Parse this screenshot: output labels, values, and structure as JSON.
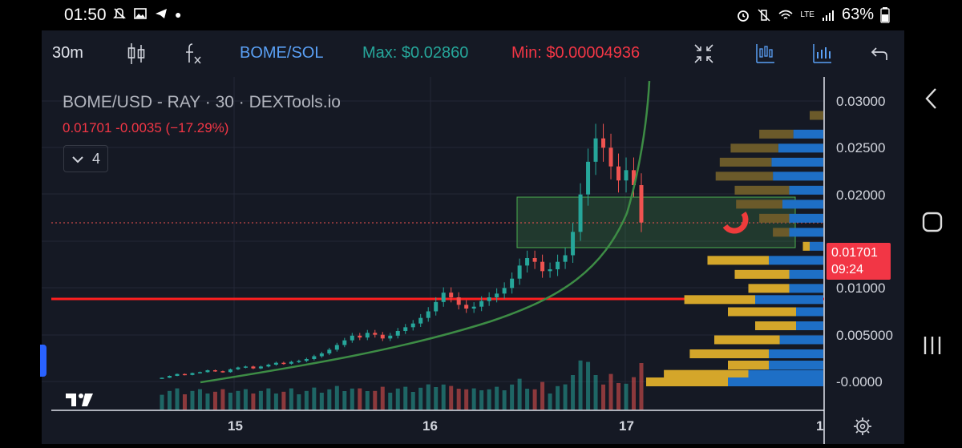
{
  "statusbar": {
    "time": "01:50",
    "battery": "63%",
    "network": "LTE"
  },
  "toolbar": {
    "interval": "30m",
    "symbol": "BOME/SOL",
    "max_label": "Max: $0.02860",
    "min_label": "Min: $0.00004936",
    "colors": {
      "max": "#26a69a",
      "min": "#f23645",
      "symbol": "#5aa0f5",
      "icons": "#5aa0f5"
    }
  },
  "chart_legend": {
    "title": "BOME/USD - RAY · 30 · DEXTools.io",
    "values": "0.01701  -0.0035 (−17.29%)",
    "indicators_count": "4"
  },
  "price_tag": {
    "price": "0.01701",
    "countdown": "09:24"
  },
  "chart_data": {
    "type": "candlestick",
    "title": "BOME/USD - RAY · 30 · DEXTools.io",
    "y_ticks": [
      "0.03000",
      "0.02500",
      "0.02000",
      "0.01000",
      "0.005000",
      "-0.0000"
    ],
    "x_ticks": [
      "15",
      "16",
      "17",
      "1"
    ],
    "last_price": 0.01701,
    "max": 0.0286,
    "colors": {
      "up": "#26a69a",
      "down": "#ef5350",
      "support_line": "#ff1f1f",
      "curve": "#3d8c45",
      "zone": "#4caf50"
    },
    "closes": [
      0.0004,
      0.0006,
      0.0008,
      0.0007,
      0.0009,
      0.001,
      0.0012,
      0.0011,
      0.001,
      0.0013,
      0.0015,
      0.0016,
      0.0014,
      0.0016,
      0.0018,
      0.002,
      0.0019,
      0.0021,
      0.0022,
      0.0024,
      0.0027,
      0.003,
      0.0034,
      0.0039,
      0.0044,
      0.0049,
      0.0047,
      0.0052,
      0.005,
      0.0046,
      0.0049,
      0.0054,
      0.0058,
      0.0062,
      0.0068,
      0.0075,
      0.0085,
      0.0095,
      0.009,
      0.0082,
      0.0078,
      0.008,
      0.0086,
      0.009,
      0.0094,
      0.01,
      0.011,
      0.0124,
      0.0132,
      0.0128,
      0.0118,
      0.012,
      0.0128,
      0.0135,
      0.016,
      0.02,
      0.0235,
      0.026,
      0.025,
      0.023,
      0.0215,
      0.0226,
      0.021,
      0.017
    ],
    "volume_profile": [
      {
        "price": 0.0285,
        "buy": 0.1,
        "sell": 0.0
      },
      {
        "price": 0.0265,
        "buy": 0.25,
        "sell": 0.22
      },
      {
        "price": 0.025,
        "buy": 0.35,
        "sell": 0.33
      },
      {
        "price": 0.0235,
        "buy": 0.38,
        "sell": 0.38
      },
      {
        "price": 0.022,
        "buy": 0.42,
        "sell": 0.37
      },
      {
        "price": 0.0205,
        "buy": 0.4,
        "sell": 0.25
      },
      {
        "price": 0.019,
        "buy": 0.34,
        "sell": 0.3
      },
      {
        "price": 0.0175,
        "buy": 0.22,
        "sell": 0.25
      },
      {
        "price": 0.016,
        "buy": 0.12,
        "sell": 0.25
      },
      {
        "price": 0.0145,
        "buy": 0.05,
        "sell": 0.1
      },
      {
        "price": 0.013,
        "buy": 0.45,
        "sell": 0.4
      },
      {
        "price": 0.0115,
        "buy": 0.4,
        "sell": 0.25
      },
      {
        "price": 0.01,
        "buy": 0.3,
        "sell": 0.25
      },
      {
        "price": 0.0088,
        "buy": 0.52,
        "sell": 0.5
      },
      {
        "price": 0.0075,
        "buy": 0.5,
        "sell": 0.2
      },
      {
        "price": 0.006,
        "buy": 0.3,
        "sell": 0.2
      },
      {
        "price": 0.0045,
        "buy": 0.48,
        "sell": 0.32
      },
      {
        "price": 0.003,
        "buy": 0.58,
        "sell": 0.4
      },
      {
        "price": 0.0018,
        "buy": 0.3,
        "sell": 0.4
      },
      {
        "price": 0.0008,
        "buy": 0.62,
        "sell": 0.55
      },
      {
        "price": 0.0,
        "buy": 0.6,
        "sell": 0.7
      }
    ]
  }
}
